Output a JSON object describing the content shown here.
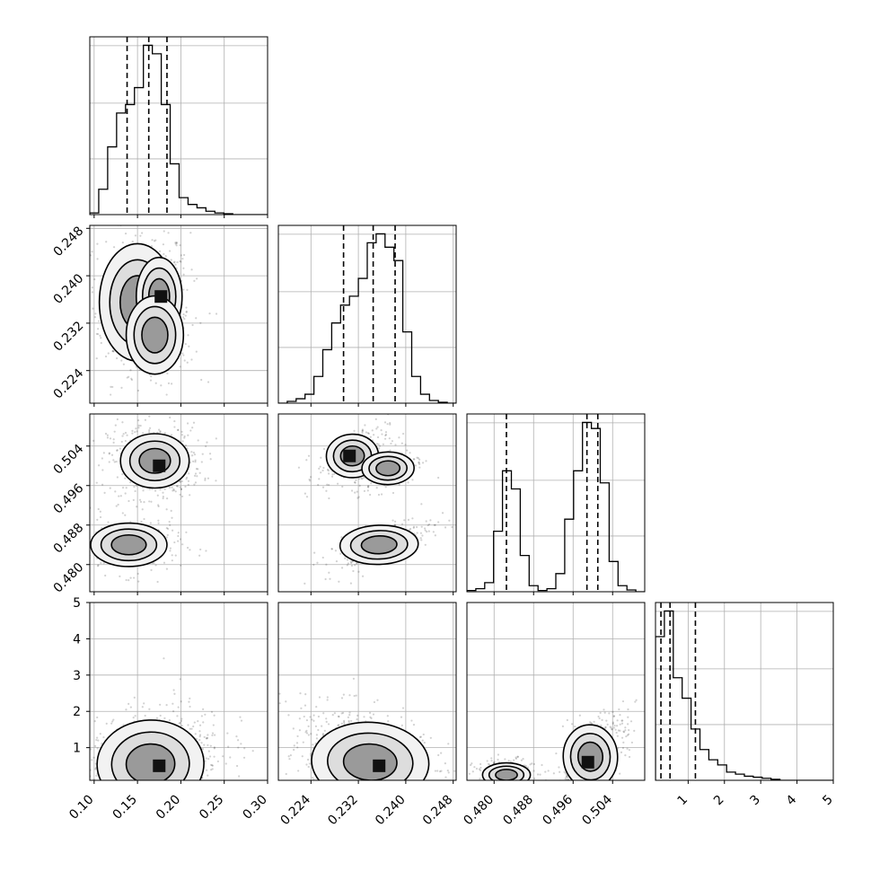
{
  "chart_data": {
    "type": "corner",
    "grid": true,
    "parameters": [
      {
        "range": [
          0.095,
          0.3
        ],
        "ticks": [
          0.1,
          0.15,
          0.2,
          0.25,
          0.3
        ],
        "tick_labels": [
          "0.10",
          "0.15",
          "0.20",
          "0.25",
          "0.30"
        ],
        "quantiles": [
          0.138,
          0.163,
          0.184
        ],
        "histogram": {
          "edges_start": 0.095,
          "bin_width": 0.0103,
          "counts": [
            2,
            30,
            80,
            120,
            130,
            150,
            200,
            190,
            130,
            60,
            20,
            12,
            8,
            4,
            2,
            1,
            0,
            0,
            0,
            0
          ]
        }
      },
      {
        "range": [
          0.2185,
          0.2485
        ],
        "ticks": [
          0.224,
          0.232,
          0.24,
          0.248
        ],
        "tick_labels": [
          "0.224",
          "0.232",
          "0.240",
          "0.248"
        ],
        "quantiles": [
          0.2295,
          0.2345,
          0.2382
        ],
        "histogram": {
          "edges_start": 0.2185,
          "bin_width": 0.0015,
          "counts": [
            0,
            2,
            5,
            10,
            30,
            60,
            90,
            110,
            120,
            140,
            180,
            190,
            175,
            160,
            80,
            30,
            10,
            3,
            1,
            0
          ]
        }
      },
      {
        "range": [
          0.4745,
          0.5105
        ],
        "ticks": [
          0.48,
          0.488,
          0.496,
          0.504
        ],
        "tick_labels": [
          "0.480",
          "0.488",
          "0.496",
          "0.504"
        ],
        "quantiles": [
          0.4825,
          0.4988,
          0.501
        ],
        "histogram": {
          "edges_start": 0.4745,
          "bin_width": 0.0018,
          "counts": [
            2,
            5,
            15,
            100,
            200,
            170,
            60,
            10,
            2,
            5,
            30,
            120,
            200,
            280,
            270,
            180,
            50,
            10,
            3,
            0
          ]
        }
      },
      {
        "range": [
          0.1,
          5.0
        ],
        "ticks": [
          1,
          2,
          3,
          4,
          5
        ],
        "tick_labels": [
          "1",
          "2",
          "3",
          "4",
          "5"
        ],
        "quantiles": [
          0.25,
          0.5,
          1.2
        ],
        "histogram": {
          "edges_start": 0.1,
          "bin_width": 0.245,
          "counts": [
            140,
            165,
            100,
            80,
            50,
            30,
            20,
            15,
            8,
            6,
            4,
            3,
            2,
            1,
            0,
            0,
            0,
            0,
            0,
            0
          ]
        }
      }
    ],
    "y_axis_labels": [
      null,
      {
        "ticks": [
          0.224,
          0.232,
          0.24,
          0.248
        ],
        "tick_labels": [
          "0.224",
          "0.232",
          "0.240",
          "0.248"
        ]
      },
      {
        "ticks": [
          0.48,
          0.488,
          0.496,
          0.504
        ],
        "tick_labels": [
          "0.480",
          "0.488",
          "0.496",
          "0.504"
        ]
      },
      {
        "ticks": [
          1,
          2,
          3,
          4,
          5
        ],
        "tick_labels": [
          "1",
          "2",
          "3",
          "4",
          "5"
        ]
      }
    ],
    "joint": [
      {
        "row": 1,
        "col": 0,
        "modes": [
          {
            "mx": 0.15,
            "my": 0.2355,
            "sx": 0.02,
            "sy": 0.0045,
            "w": 0.45
          },
          {
            "mx": 0.175,
            "my": 0.2365,
            "sx": 0.012,
            "sy": 0.003,
            "w": 0.3
          },
          {
            "mx": 0.17,
            "my": 0.23,
            "sx": 0.015,
            "sy": 0.003,
            "w": 0.25
          }
        ],
        "peak": [
          0.177,
          0.2365
        ]
      },
      {
        "row": 2,
        "col": 0,
        "modes": [
          {
            "mx": 0.17,
            "my": 0.501,
            "sx": 0.018,
            "sy": 0.0025,
            "w": 0.65
          },
          {
            "mx": 0.14,
            "my": 0.484,
            "sx": 0.02,
            "sy": 0.002,
            "w": 0.35
          }
        ],
        "peak": [
          0.175,
          0.5
        ]
      },
      {
        "row": 2,
        "col": 1,
        "modes": [
          {
            "mx": 0.231,
            "my": 0.502,
            "sx": 0.002,
            "sy": 0.002,
            "w": 0.33,
            "rho": 0.6
          },
          {
            "mx": 0.237,
            "my": 0.4995,
            "sx": 0.002,
            "sy": 0.0015,
            "w": 0.32,
            "rho": 0.4
          },
          {
            "mx": 0.2355,
            "my": 0.484,
            "sx": 0.003,
            "sy": 0.0018,
            "w": 0.35,
            "rho": 0.7
          }
        ],
        "peak": [
          0.2305,
          0.502
        ]
      },
      {
        "row": 3,
        "col": 0,
        "modes": [
          {
            "mx": 0.165,
            "my": 0.55,
            "sx": 0.028,
            "sy": 0.55,
            "w": 1.0,
            "rho": 0.3
          }
        ],
        "peak": [
          0.175,
          0.5
        ]
      },
      {
        "row": 3,
        "col": 1,
        "modes": [
          {
            "mx": 0.234,
            "my": 0.6,
            "sx": 0.0045,
            "sy": 0.5,
            "w": 1.0,
            "rho": -0.5
          }
        ],
        "peak": [
          0.2355,
          0.5
        ]
      },
      {
        "row": 3,
        "col": 2,
        "modes": [
          {
            "mx": 0.4825,
            "my": 0.25,
            "sx": 0.0022,
            "sy": 0.15,
            "w": 0.35
          },
          {
            "mx": 0.4995,
            "my": 0.75,
            "sx": 0.0025,
            "sy": 0.4,
            "w": 0.65,
            "rho": 0.6
          }
        ],
        "peak": [
          0.499,
          0.6
        ]
      }
    ]
  }
}
